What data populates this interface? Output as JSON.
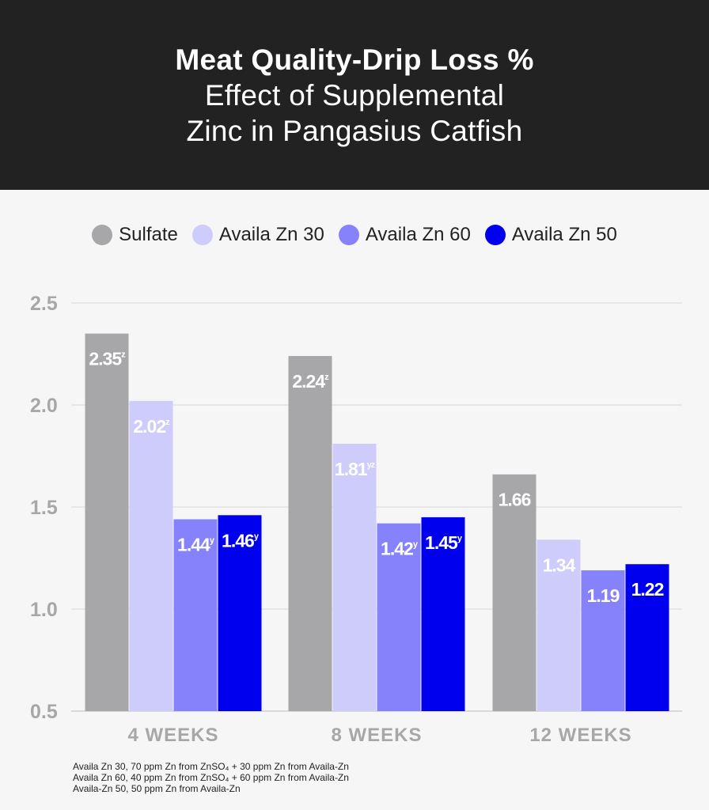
{
  "title": {
    "line1": "Meat Quality-Drip Loss %",
    "line2": "Effect of Supplemental",
    "line3": "Zinc in Pangasius Catfish"
  },
  "colors": {
    "header_bg": "#222222",
    "background": "#f6f6f6",
    "Sulfate": "#a7a7aa",
    "Availa Zn 30": "#cdccfb",
    "Availa Zn 60": "#8582fb",
    "Availa Zn 50": "#0000ee"
  },
  "chart_data": {
    "type": "bar",
    "title": "Meat Quality-Drip Loss % Effect of Supplemental Zinc in Pangasius Catfish",
    "categories": [
      "4 WEEKS",
      "8 WEEKS",
      "12 WEEKS"
    ],
    "series": [
      {
        "name": "Sulfate",
        "color": "#a7a7aa",
        "values": [
          2.35,
          2.24,
          1.66
        ],
        "superscripts": [
          "z",
          "z",
          ""
        ]
      },
      {
        "name": "Availa Zn 30",
        "color": "#cdccfb",
        "values": [
          2.02,
          1.81,
          1.34
        ],
        "superscripts": [
          "z",
          "yz",
          ""
        ]
      },
      {
        "name": "Availa Zn 60",
        "color": "#8582fb",
        "values": [
          1.44,
          1.42,
          1.19
        ],
        "superscripts": [
          "y",
          "y",
          ""
        ]
      },
      {
        "name": "Availa Zn 50",
        "color": "#0000ee",
        "values": [
          1.46,
          1.45,
          1.22
        ],
        "superscripts": [
          "y",
          "y",
          ""
        ]
      }
    ],
    "value_labels": [
      [
        "2.35",
        "2.24",
        "1.66"
      ],
      [
        "2.02",
        "1.81",
        "1.34"
      ],
      [
        "1.44",
        "1.42",
        "1.19"
      ],
      [
        "1.46",
        "1.45",
        "1.22"
      ]
    ],
    "yticks": [
      "0.5",
      "1.0",
      "1.5",
      "2.0",
      "2.5"
    ],
    "ylim": [
      0.5,
      2.5
    ],
    "grid": true,
    "legend": "top-center",
    "xlabel": "",
    "ylabel": ""
  },
  "footnotes": [
    "Availa Zn 30, 70 ppm Zn from ZnSO₄ + 30 ppm Zn from Availa-Zn",
    "Availa Zn 60, 40 ppm Zn from ZnSO₄ + 60 ppm Zn from Availa-Zn",
    "Availa-Zn 50, 50 ppm Zn from Availa-Zn"
  ]
}
